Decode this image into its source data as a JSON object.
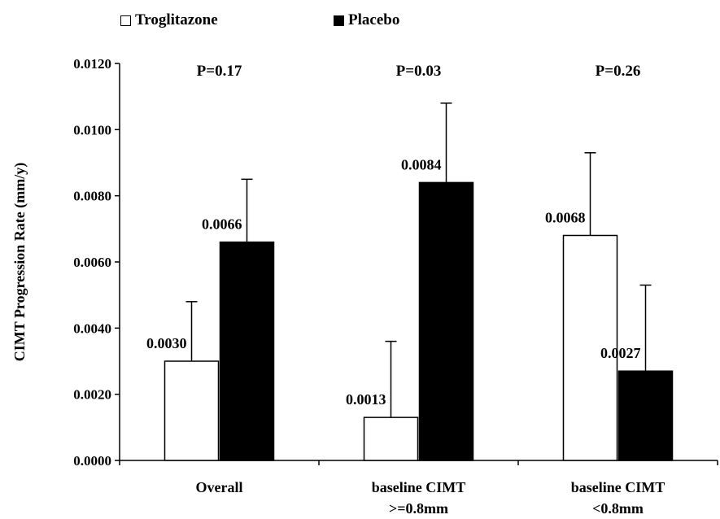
{
  "chart_data": {
    "type": "bar",
    "title": "",
    "xlabel": "",
    "ylabel": "CIMT Progression Rate (mm/y)",
    "ylim": [
      0,
      0.012
    ],
    "yticks": [
      "0.0000",
      "0.0020",
      "0.0040",
      "0.0060",
      "0.0080",
      "0.0100",
      "0.0120"
    ],
    "ytick_values": [
      0,
      0.002,
      0.004,
      0.006,
      0.008,
      0.01,
      0.012
    ],
    "categories": [
      [
        "Overall"
      ],
      [
        "baseline CIMT",
        ">=0.8mm"
      ],
      [
        "baseline CIMT",
        "<0.8mm"
      ]
    ],
    "p_values": [
      "P=0.17",
      "P=0.03",
      "P=0.26"
    ],
    "series": [
      {
        "name": "Troglitazone",
        "color": "#ffffff",
        "values": [
          0.003,
          0.0013,
          0.0068
        ],
        "labels": [
          "0.0030",
          "0.0013",
          "0.0068"
        ],
        "error_upper": [
          0.0048,
          0.0036,
          0.0093
        ]
      },
      {
        "name": "Placebo",
        "color": "#000000",
        "values": [
          0.0066,
          0.0084,
          0.0027
        ],
        "labels": [
          "0.0066",
          "0.0084",
          "0.0027"
        ],
        "error_upper": [
          0.0085,
          0.0108,
          0.0053
        ]
      }
    ],
    "legend_position": "top-left",
    "grid": false
  }
}
